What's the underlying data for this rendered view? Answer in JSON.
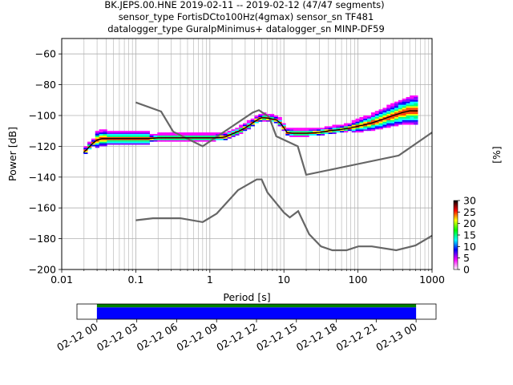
{
  "title": {
    "line1": "BK.JEPS.00.HNE   2019-02-11 -- 2019-02-12  (47/47 segments)",
    "line2": "sensor_type FortisDCto100Hz(4gmax) sensor_sn TF481",
    "line3": "datalogger_type GuralpMinimus+ datalogger_sn MINP-DF59"
  },
  "chart_data": [
    {
      "type": "heatmap",
      "title": "BK.JEPS.00.HNE   2019-02-11 -- 2019-02-12  (47/47 segments)",
      "xlabel": "Period [s]",
      "ylabel": "Power [dB]",
      "xscale": "log",
      "xlim": [
        0.01,
        1000
      ],
      "ylim": [
        -200,
        -50
      ],
      "x_ticks": [
        "0.01",
        "0.1",
        "1",
        "10",
        "100",
        "1000"
      ],
      "y_ticks": [
        "−60",
        "−80",
        "−100",
        "−120",
        "−140",
        "−160",
        "−180",
        "−200"
      ],
      "grid": true,
      "colorbar": {
        "label": "[%]",
        "range": [
          0,
          30
        ],
        "ticks": [
          "0",
          "5",
          "10",
          "15",
          "20",
          "25",
          "30"
        ],
        "colors": [
          "#ffffff",
          "#ff00ff",
          "#0000ff",
          "#00ffff",
          "#00ff00",
          "#ffff00",
          "#ff0000",
          "#000000"
        ]
      },
      "mean_psd": [
        [
          0.0197,
          -124
        ],
        [
          0.022,
          -122
        ],
        [
          0.025,
          -119
        ],
        [
          0.028,
          -117
        ],
        [
          0.03,
          -116
        ],
        [
          0.035,
          -115
        ],
        [
          0.045,
          -115
        ],
        [
          0.06,
          -115
        ],
        [
          0.08,
          -115
        ],
        [
          0.1,
          -115
        ],
        [
          0.15,
          -115
        ],
        [
          0.2,
          -114.5
        ],
        [
          0.3,
          -114.5
        ],
        [
          0.5,
          -114.5
        ],
        [
          0.8,
          -114.5
        ],
        [
          1.2,
          -114.5
        ],
        [
          1.6,
          -114
        ],
        [
          2.0,
          -112
        ],
        [
          2.5,
          -110
        ],
        [
          3.0,
          -108
        ],
        [
          3.5,
          -106
        ],
        [
          4.0,
          -104
        ],
        [
          4.5,
          -102.5
        ],
        [
          5.0,
          -101.5
        ],
        [
          5.5,
          -101.5
        ],
        [
          6.5,
          -102
        ],
        [
          8.0,
          -103
        ],
        [
          9.0,
          -105
        ],
        [
          10,
          -108
        ],
        [
          11,
          -111
        ],
        [
          13,
          -111.5
        ],
        [
          16,
          -111.5
        ],
        [
          20,
          -111.5
        ],
        [
          30,
          -111
        ],
        [
          40,
          -110
        ],
        [
          60,
          -109
        ],
        [
          80,
          -108
        ],
        [
          100,
          -107
        ],
        [
          150,
          -105
        ],
        [
          200,
          -103
        ],
        [
          300,
          -100
        ],
        [
          400,
          -98
        ],
        [
          500,
          -97
        ],
        [
          640,
          -97
        ]
      ],
      "noise_models": [
        {
          "points": [
            [
              0.1,
              -91.5
            ],
            [
              0.22,
              -97.4
            ],
            [
              0.32,
              -110.5
            ],
            [
              0.8,
              -120
            ],
            [
              3.8,
              -98
            ],
            [
              4.6,
              -96.5
            ],
            [
              6.3,
              -101
            ],
            [
              7.9,
              -113.5
            ],
            [
              15.4,
              -120
            ],
            [
              20,
              -138.5
            ],
            [
              354.8,
              -126
            ],
            [
              1000,
              -111
            ]
          ]
        },
        {
          "points": [
            [
              0.1,
              -168
            ],
            [
              0.17,
              -166.7
            ],
            [
              0.4,
              -166.7
            ],
            [
              0.8,
              -169.2
            ],
            [
              1.24,
              -163.7
            ],
            [
              2.4,
              -148.5
            ],
            [
              4.3,
              -141.5
            ],
            [
              5.0,
              -141.5
            ],
            [
              6.0,
              -150
            ],
            [
              10,
              -163
            ],
            [
              12,
              -166.2
            ],
            [
              15.6,
              -162.1
            ],
            [
              21.9,
              -177.1
            ],
            [
              31.6,
              -185
            ],
            [
              45,
              -187.5
            ],
            [
              70,
              -187.5
            ],
            [
              101,
              -185
            ],
            [
              154,
              -185
            ],
            [
              328,
              -187.5
            ],
            [
              600,
              -184.4
            ],
            [
              1000,
              -178
            ]
          ]
        }
      ]
    },
    {
      "type": "bar",
      "title": "",
      "x_ticks": [
        "02-12 00",
        "02-12 03",
        "02-12 06",
        "02-12 09",
        "02-12 12",
        "02-12 15",
        "02-12 18",
        "02-12 21",
        "02-13 00"
      ],
      "xlim": [
        "02-11 22:30",
        "02-13 01:30"
      ],
      "series": [
        {
          "color": "#008000",
          "start": "02-12 00",
          "end": "02-13 00"
        },
        {
          "color": "#0000ff",
          "start": "02-12 00",
          "end": "02-13 00"
        }
      ]
    }
  ]
}
